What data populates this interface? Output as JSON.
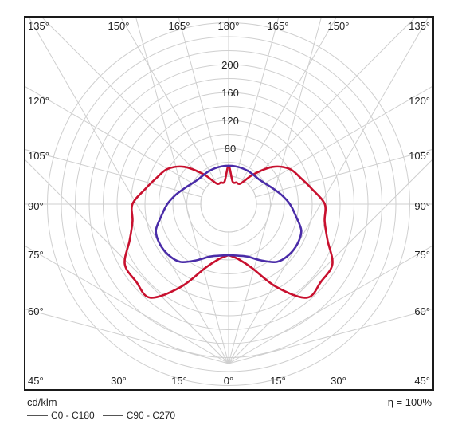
{
  "chart_data": {
    "type": "polar",
    "unit_label": "cd/klm",
    "efficiency_label": "η = 100%",
    "radial_ticks": [
      "80",
      "120",
      "160",
      "200"
    ],
    "radial_tick_values": [
      80,
      120,
      160,
      200
    ],
    "rmax": 260,
    "angle_step_deg": 15,
    "top_angle_labels": [
      "135°",
      "150°",
      "165°",
      "180°",
      "165°",
      "150°",
      "135°"
    ],
    "side_angle_labels": [
      "120°",
      "105°",
      "90°",
      "75°",
      "60°"
    ],
    "bottom_angle_labels": [
      "45°",
      "30°",
      "15°",
      "0°",
      "15°",
      "30°",
      "45°"
    ],
    "legend": [
      "C0 - C180",
      "C90 - C270"
    ],
    "colors": {
      "C0-C180": "#c8102e",
      "C90-C270": "#4a2ca8",
      "grid": "#cfcfcf"
    },
    "series": [
      {
        "name": "C0 - C180",
        "angles": [
          0,
          10,
          20,
          30,
          40,
          50,
          60,
          70,
          80,
          90,
          100,
          110,
          120,
          130,
          140,
          150,
          160,
          170,
          180
        ],
        "values": [
          73,
          80,
          97,
          137,
          175,
          173,
          172,
          151,
          140,
          138,
          122,
          110,
          101,
          83,
          56,
          34,
          33,
          33,
          55
        ]
      },
      {
        "name": "C90 - C270",
        "angles": [
          0,
          10,
          20,
          30,
          40,
          50,
          60,
          70,
          80,
          90,
          100,
          110,
          120,
          130,
          140,
          150,
          160,
          170,
          180
        ],
        "values": [
          73,
          75,
          80,
          93,
          108,
          113,
          114,
          111,
          98,
          88,
          77,
          67,
          60,
          56,
          55,
          55,
          55,
          55,
          55
        ]
      }
    ]
  }
}
